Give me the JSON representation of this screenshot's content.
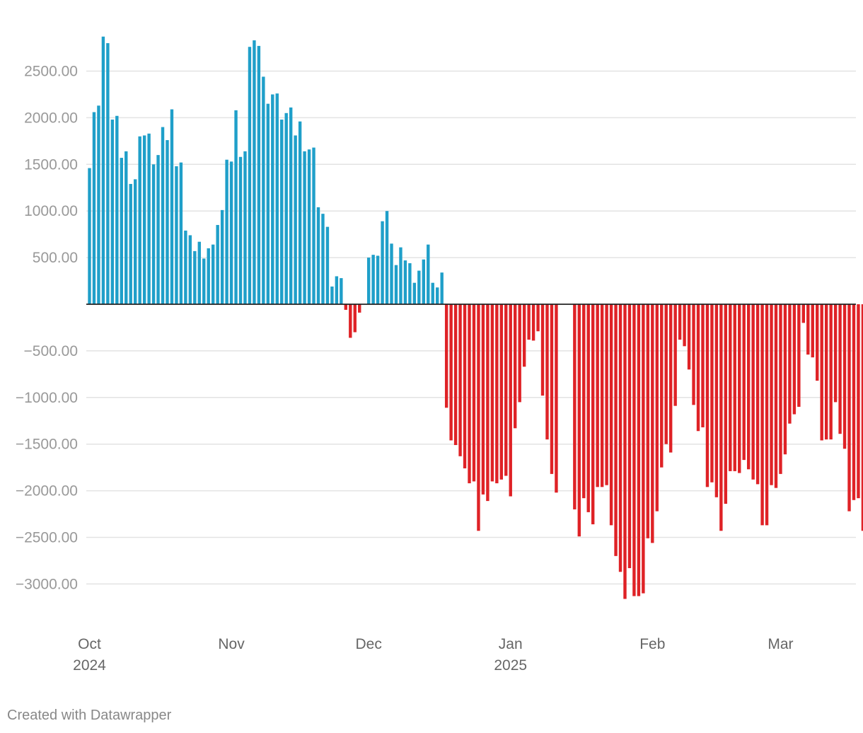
{
  "chart_data": {
    "type": "bar",
    "colors": {
      "positive": "#1f9fc9",
      "negative": "#df2226",
      "grid": "#e3e3e3",
      "zero_line": "#222222"
    },
    "ylim": [
      -3150,
      2900
    ],
    "y_ticks": [
      2500,
      2000,
      1500,
      1000,
      500,
      -500,
      -1000,
      -1500,
      -2000,
      -2500,
      -3000
    ],
    "y_tick_labels": [
      "2500.00",
      "2000.00",
      "1500.00",
      "1000.00",
      "500.00",
      "−500.00",
      "−1000.00",
      "−1500.00",
      "−2000.00",
      "−2500.00",
      "−3000.00"
    ],
    "grid": true,
    "x_start_date": "2024-10-01",
    "x_ticks": [
      {
        "date": "2024-10-01",
        "label": "Oct",
        "sublabel": "2024"
      },
      {
        "date": "2024-11-01",
        "label": "Nov",
        "sublabel": ""
      },
      {
        "date": "2024-12-01",
        "label": "Dec",
        "sublabel": ""
      },
      {
        "date": "2025-01-01",
        "label": "Jan",
        "sublabel": "2025"
      },
      {
        "date": "2025-02-01",
        "label": "Feb",
        "sublabel": ""
      },
      {
        "date": "2025-03-01",
        "label": "Mar",
        "sublabel": ""
      }
    ],
    "values": [
      1460,
      2060,
      2130,
      2870,
      2800,
      1980,
      2020,
      1570,
      1640,
      1290,
      1340,
      1800,
      1810,
      1830,
      1500,
      1600,
      1900,
      1760,
      2090,
      1480,
      1520,
      790,
      740,
      570,
      670,
      490,
      600,
      640,
      850,
      1010,
      1550,
      1530,
      2080,
      1580,
      1640,
      2760,
      2830,
      2770,
      2440,
      2150,
      2250,
      2260,
      1980,
      2050,
      2110,
      1810,
      1960,
      1640,
      1660,
      1680,
      1040,
      970,
      830,
      190,
      300,
      280,
      -60,
      -360,
      -300,
      -90,
      null,
      500,
      530,
      520,
      890,
      1000,
      650,
      420,
      610,
      470,
      440,
      230,
      360,
      480,
      640,
      230,
      180,
      340,
      -1110,
      -1460,
      -1510,
      -1630,
      -1760,
      -1920,
      -1900,
      -2430,
      -2040,
      -2110,
      -1900,
      -1920,
      -1880,
      -1840,
      -2060,
      -1330,
      -1050,
      -670,
      -380,
      -390,
      -290,
      -980,
      -1450,
      -1820,
      -2020,
      null,
      null,
      null,
      -2200,
      -2490,
      -2080,
      -2230,
      -2360,
      -1960,
      -1960,
      -1940,
      -2370,
      -2700,
      -2870,
      -3160,
      -2830,
      -3130,
      -3130,
      -3100,
      -2510,
      -2560,
      -2220,
      -1750,
      -1500,
      -1590,
      -1090,
      -380,
      -450,
      -700,
      -1080,
      -1360,
      -1320,
      -1960,
      -1910,
      -2070,
      -2430,
      -2140,
      -1790,
      -1790,
      -1810,
      -1670,
      -1770,
      -1880,
      -1930,
      -2370,
      -2370,
      -1940,
      -1970,
      -1820,
      -1610,
      -1280,
      -1180,
      -1100,
      -200,
      -540,
      -570,
      -820,
      -1460,
      -1450,
      -1450,
      -1050,
      -1390,
      -1550,
      -2220,
      -2100,
      -2080,
      -2430
    ]
  },
  "footer": {
    "credit": "Created with Datawrapper"
  }
}
